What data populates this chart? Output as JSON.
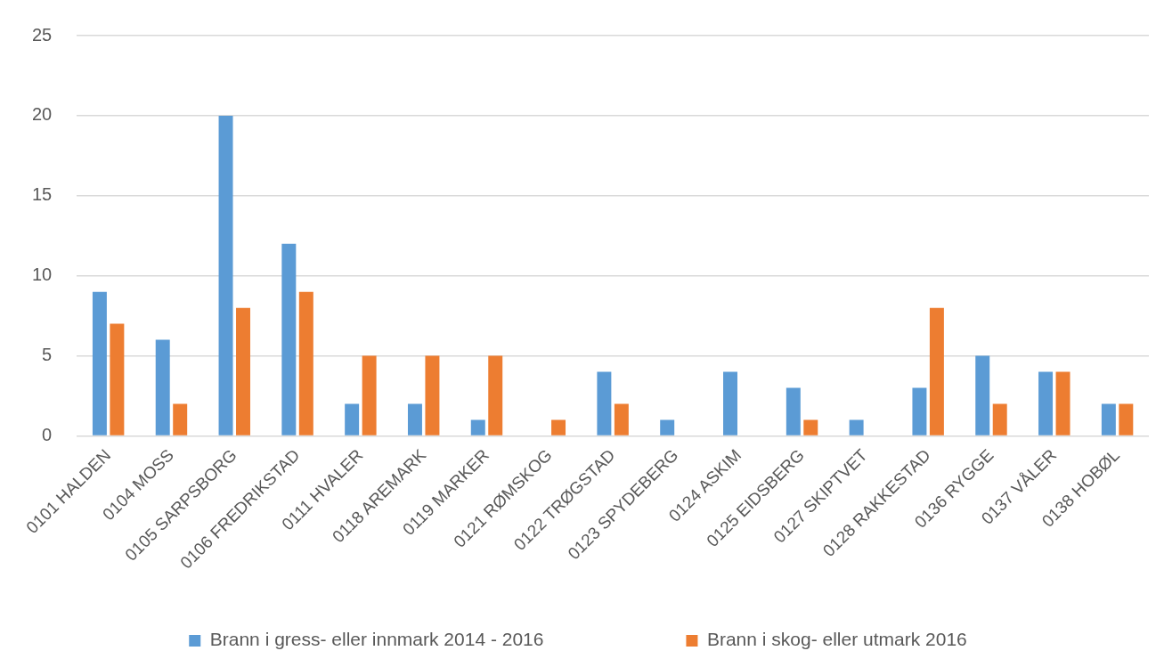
{
  "chart_data": {
    "type": "bar",
    "categories": [
      "0101 HALDEN",
      "0104 MOSS",
      "0105 SARPSBORG",
      "0106 FREDRIKSTAD",
      "0111 HVALER",
      "0118 AREMARK",
      "0119 MARKER",
      "0121 RØMSKOG",
      "0122 TRØGSTAD",
      "0123 SPYDEBERG",
      "0124 ASKIM",
      "0125 EIDSBERG",
      "0127 SKIPTVET",
      "0128 RAKKESTAD",
      "0136 RYGGE",
      "0137 VÅLER",
      "0138 HOBØL"
    ],
    "series": [
      {
        "name": "Brann i gress- eller innmark 2014 - 2016",
        "color": "#5b9bd5",
        "values": [
          9,
          6,
          20,
          12,
          2,
          2,
          1,
          null,
          4,
          1,
          4,
          3,
          1,
          3,
          5,
          4,
          2
        ]
      },
      {
        "name": "Brann i skog- eller utmark 2016",
        "color": "#ed7d31",
        "values": [
          7,
          2,
          8,
          9,
          5,
          5,
          5,
          1,
          2,
          null,
          null,
          1,
          null,
          8,
          2,
          4,
          2
        ]
      }
    ],
    "ylim": [
      0,
      25
    ],
    "yticks": [
      0,
      5,
      10,
      15,
      20,
      25
    ],
    "grid": "y",
    "legend": "bottom"
  }
}
